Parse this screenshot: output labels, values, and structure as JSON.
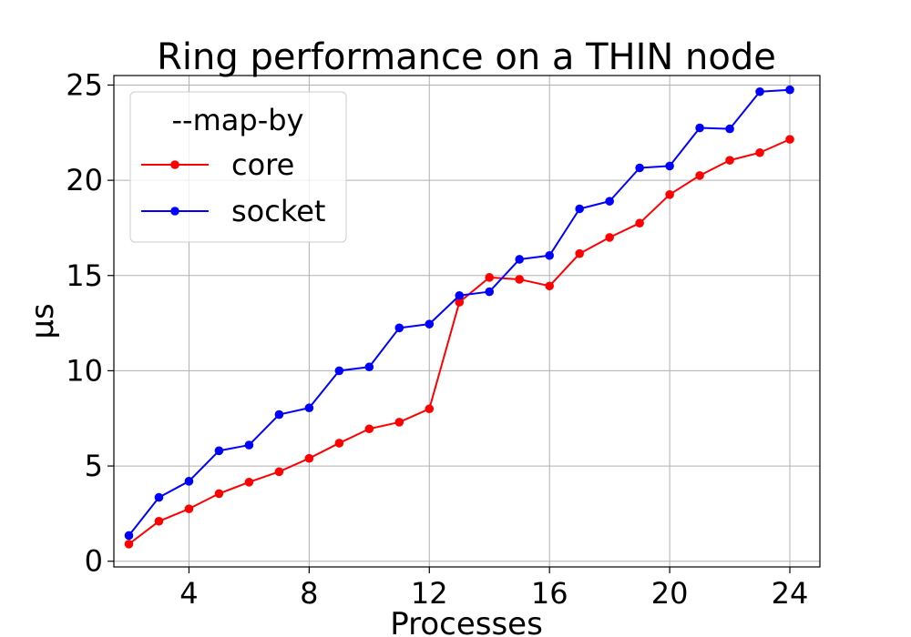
{
  "chart_data": {
    "type": "line",
    "title": "Ring performance on a THIN node",
    "xlabel": "Processes",
    "ylabel": "μs",
    "xlim": [
      1.5,
      25
    ],
    "ylim": [
      -0.3,
      25.5
    ],
    "xticks": [
      4,
      8,
      12,
      16,
      20,
      24
    ],
    "yticks": [
      0,
      5,
      10,
      15,
      20,
      25
    ],
    "grid": true,
    "legend": {
      "title": "--map-by",
      "placement": "top-left"
    },
    "x": [
      2,
      3,
      4,
      5,
      6,
      7,
      8,
      9,
      10,
      11,
      12,
      13,
      14,
      15,
      16,
      17,
      18,
      19,
      20,
      21,
      22,
      23,
      24
    ],
    "series": [
      {
        "name": "core",
        "color": "#ff0000",
        "values": [
          0.9,
          2.1,
          2.75,
          3.55,
          4.15,
          4.7,
          5.4,
          6.2,
          6.95,
          7.3,
          8.0,
          13.6,
          14.9,
          14.8,
          14.45,
          16.15,
          17.0,
          17.75,
          19.25,
          20.25,
          21.05,
          21.45,
          22.15
        ]
      },
      {
        "name": "socket",
        "color": "#0000ff",
        "values": [
          1.35,
          3.35,
          4.2,
          5.8,
          6.1,
          7.7,
          8.05,
          10.0,
          10.2,
          12.25,
          12.45,
          13.95,
          14.15,
          15.85,
          16.05,
          18.5,
          18.9,
          20.65,
          20.75,
          22.75,
          22.7,
          24.65,
          24.75
        ]
      }
    ]
  }
}
